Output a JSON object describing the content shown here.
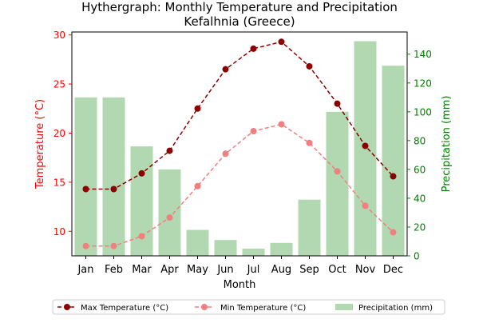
{
  "chart_data": {
    "type": "bar+line",
    "title": "Hythergraph: Monthly Temperature and Precipitation",
    "subtitle": "Kefalhnia (Greece)",
    "xlabel": "Month",
    "ylabel_left": "Temperature (°C)",
    "ylabel_right": "Precipitation (mm)",
    "categories": [
      "Jan",
      "Feb",
      "Mar",
      "Apr",
      "May",
      "Jun",
      "Jul",
      "Aug",
      "Sep",
      "Oct",
      "Nov",
      "Dec"
    ],
    "ylim_left": [
      7.5,
      30.3
    ],
    "ylim_right": [
      0,
      155.4
    ],
    "yticks_left": [
      10,
      15,
      20,
      25,
      30
    ],
    "yticks_right": [
      0,
      20,
      40,
      60,
      80,
      100,
      120,
      140
    ],
    "series": [
      {
        "name": "Max Temperature (°C)",
        "axis": "left",
        "type": "line",
        "style": "dashed",
        "color": "#8b0000",
        "values": [
          14.3,
          14.3,
          15.9,
          18.2,
          22.5,
          26.5,
          28.6,
          29.3,
          26.8,
          23.0,
          18.7,
          15.6
        ]
      },
      {
        "name": "Min Temperature (°C)",
        "axis": "left",
        "type": "line",
        "style": "dashed",
        "color": "#f08080",
        "values": [
          8.5,
          8.5,
          9.5,
          11.4,
          14.6,
          17.9,
          20.2,
          20.9,
          19.0,
          16.1,
          12.6,
          9.9
        ]
      },
      {
        "name": "Precipitation (mm)",
        "axis": "right",
        "type": "bar",
        "color": "#b2d8b2",
        "values": [
          110,
          110,
          76,
          60,
          18,
          11,
          5,
          9,
          39,
          100,
          149,
          132
        ]
      }
    ],
    "legend": {
      "position": "bottom",
      "entries": [
        "Max Temperature (°C)",
        "Min Temperature (°C)",
        "Precipitation (mm)"
      ]
    },
    "colors": {
      "left_axis": "#ff0000",
      "right_axis": "#008000",
      "max_temp": "#8b0000",
      "min_temp": "#f08080",
      "precip": "#b2d8b2"
    },
    "grid": false
  }
}
